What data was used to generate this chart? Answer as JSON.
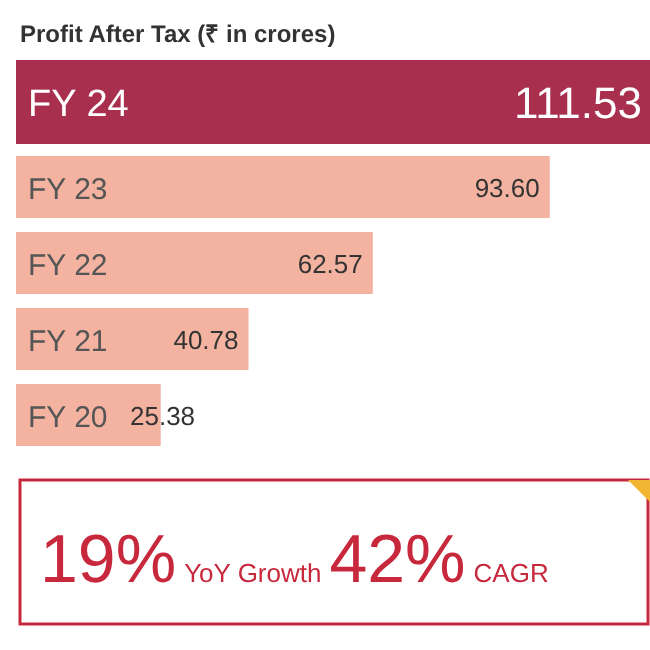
{
  "chart_data": {
    "type": "bar",
    "orientation": "horizontal",
    "title": "Profit After Tax (₹ in crores)",
    "categories": [
      "FY 24",
      "FY 23",
      "FY 22",
      "FY 21",
      "FY 20"
    ],
    "values": [
      111.53,
      93.6,
      62.57,
      40.78,
      25.38
    ],
    "value_labels": [
      "111.53",
      "93.60",
      "62.57",
      "40.78",
      "25.38"
    ],
    "colors": [
      "#a8304e",
      "#f4b3a0",
      "#f4b3a0",
      "#f4b3a0",
      "#f4b3a0"
    ],
    "annotations": [
      "19%",
      "YoY Growth",
      "42%",
      "CAGR"
    ]
  }
}
